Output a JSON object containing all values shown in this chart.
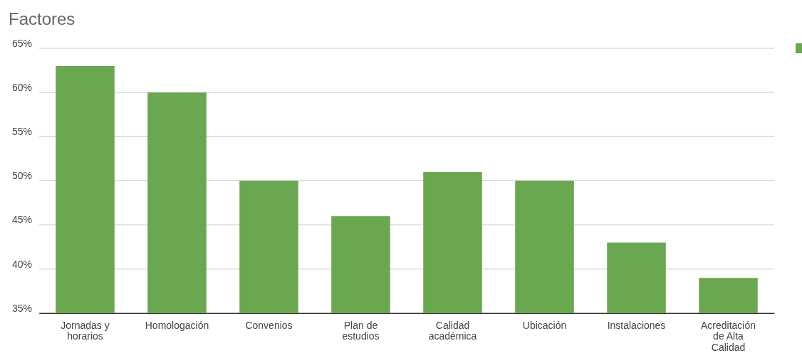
{
  "chart_data": {
    "type": "bar",
    "title": "Factores",
    "categories": [
      "Jornadas y horarios",
      "Homologación",
      "Convenios",
      "Plan de estudios",
      "Calidad académica",
      "Ubicación",
      "Instalaciones",
      "Acreditación de Alta Calidad"
    ],
    "series": [
      {
        "color": "#6aa84f",
        "values": [
          63,
          60,
          50,
          46,
          51,
          50,
          43,
          39
        ]
      }
    ],
    "ylim": [
      35,
      65
    ],
    "yticks": [
      {
        "value": 35,
        "label": "35%"
      },
      {
        "value": 40,
        "label": "40%"
      },
      {
        "value": 45,
        "label": "45%"
      },
      {
        "value": 50,
        "label": "50%"
      },
      {
        "value": 55,
        "label": "55%"
      },
      {
        "value": 60,
        "label": "60%"
      },
      {
        "value": 65,
        "label": "65%"
      }
    ],
    "grid": "y"
  }
}
